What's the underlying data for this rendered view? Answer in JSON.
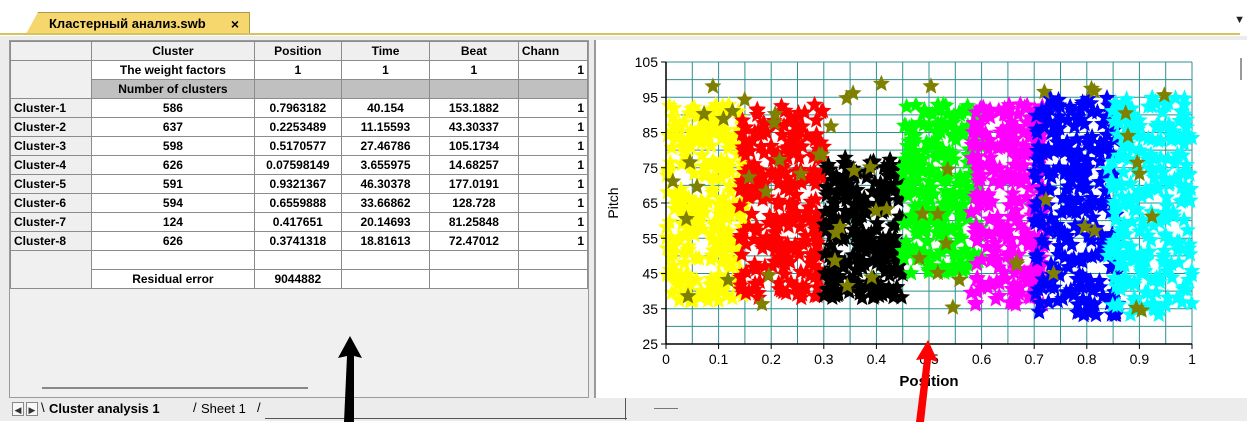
{
  "document_tab": {
    "title": "Кластерный анализ.swb",
    "close_label": "×"
  },
  "table": {
    "headers": [
      "Cluster",
      "Position",
      "Time",
      "Beat",
      "Chann"
    ],
    "weight_row": {
      "label": "The weight factors",
      "values": [
        "1",
        "1",
        "1",
        "1"
      ]
    },
    "num_clusters_label": "Number of clusters",
    "rows": [
      {
        "name": "Cluster-1",
        "values": [
          "586",
          "0.7963182",
          "40.154",
          "153.1882",
          "1"
        ]
      },
      {
        "name": "Cluster-2",
        "values": [
          "637",
          "0.2253489",
          "11.15593",
          "43.30337",
          "1"
        ]
      },
      {
        "name": "Cluster-3",
        "values": [
          "598",
          "0.5170577",
          "27.46786",
          "105.1734",
          "1"
        ]
      },
      {
        "name": "Cluster-4",
        "values": [
          "626",
          "0.07598149",
          "3.655975",
          "14.68257",
          "1"
        ]
      },
      {
        "name": "Cluster-5",
        "values": [
          "591",
          "0.9321367",
          "46.30378",
          "177.0191",
          "1"
        ]
      },
      {
        "name": "Cluster-6",
        "values": [
          "594",
          "0.6559888",
          "33.66862",
          "128.728",
          "1"
        ]
      },
      {
        "name": "Cluster-7",
        "values": [
          "124",
          "0.417651",
          "20.14693",
          "81.25848",
          "1"
        ]
      },
      {
        "name": "Cluster-8",
        "values": [
          "626",
          "0.3741318",
          "18.81613",
          "72.47012",
          "1"
        ]
      }
    ],
    "residual": {
      "label": "Residual error",
      "value": "9044882"
    }
  },
  "sheet_tabs": [
    {
      "label": "Cluster analysis 1",
      "active": true
    },
    {
      "label": "Sheet 1",
      "active": false
    }
  ],
  "chart_data": {
    "type": "scatter",
    "xlabel": "Position",
    "ylabel": "Pitch",
    "xlim": [
      0,
      1
    ],
    "ylim": [
      25,
      105
    ],
    "x_ticks": [
      "0",
      "0.1",
      "0.2",
      "0.3",
      "0.4",
      "0.5",
      "0.6",
      "0.7",
      "0.8",
      "0.9",
      "1"
    ],
    "y_ticks": [
      "25",
      "35",
      "45",
      "55",
      "65",
      "75",
      "85",
      "95",
      "105"
    ],
    "grid": true,
    "marker": "star",
    "clusters": [
      {
        "color": "#ffff00",
        "x_range": [
          0.0,
          0.15
        ],
        "y_range": [
          37,
          93
        ]
      },
      {
        "color": "#ff0000",
        "x_range": [
          0.14,
          0.3
        ],
        "y_range": [
          38,
          93
        ]
      },
      {
        "color": "#000000",
        "x_range": [
          0.3,
          0.45
        ],
        "y_range": [
          38,
          78
        ]
      },
      {
        "color": "#00ff00",
        "x_range": [
          0.45,
          0.6
        ],
        "y_range": [
          45,
          93
        ]
      },
      {
        "color": "#ff00ff",
        "x_range": [
          0.58,
          0.72
        ],
        "y_range": [
          36,
          93
        ]
      },
      {
        "color": "#0000ff",
        "x_range": [
          0.7,
          0.86
        ],
        "y_range": [
          33,
          95
        ]
      },
      {
        "color": "#00ffff",
        "x_range": [
          0.84,
          1.0
        ],
        "y_range": [
          33,
          95
        ]
      },
      {
        "color": "#808000",
        "x_range": [
          0.0,
          0.97
        ],
        "y_range": [
          32,
          100
        ]
      }
    ]
  },
  "colors": {
    "tab_active": "#f5d76e",
    "grid_line": "#2f8f8f",
    "arrow_black": "#000000",
    "arrow_red": "#ff0000"
  }
}
